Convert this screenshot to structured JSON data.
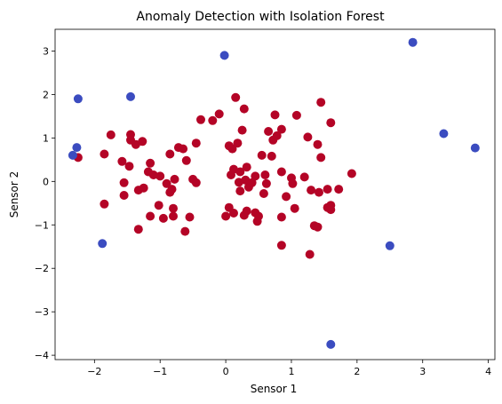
{
  "chart_data": {
    "type": "scatter",
    "title": "Anomaly Detection with Isolation Forest",
    "xlabel": "Sensor 1",
    "ylabel": "Sensor 2",
    "xlim": [
      -2.6,
      4.1
    ],
    "ylim": [
      -4.1,
      3.5
    ],
    "xticks": [
      -2,
      -1,
      0,
      1,
      2,
      3,
      4
    ],
    "yticks": [
      -4,
      -3,
      -2,
      -1,
      0,
      1,
      2,
      3
    ],
    "grid": false,
    "colors": {
      "normal": "#b40426",
      "anomaly": "#3b4cc0"
    },
    "series": [
      {
        "class": "normal",
        "points": [
          [
            -2.25,
            0.55
          ],
          [
            -1.85,
            -0.52
          ],
          [
            -1.85,
            0.63
          ],
          [
            -1.75,
            1.07
          ],
          [
            -1.55,
            -0.03
          ],
          [
            -1.55,
            -0.32
          ],
          [
            -1.58,
            0.46
          ],
          [
            -1.47,
            0.35
          ],
          [
            -1.45,
            0.95
          ],
          [
            -1.45,
            1.08
          ],
          [
            -1.37,
            0.85
          ],
          [
            -1.33,
            -1.1
          ],
          [
            -1.33,
            -0.2
          ],
          [
            -1.27,
            0.92
          ],
          [
            -1.25,
            -0.15
          ],
          [
            -1.18,
            0.22
          ],
          [
            -1.15,
            0.42
          ],
          [
            -1.15,
            -0.8
          ],
          [
            -1.1,
            0.15
          ],
          [
            -1.02,
            -0.55
          ],
          [
            -1.0,
            0.12
          ],
          [
            -0.95,
            -0.85
          ],
          [
            -0.9,
            -0.05
          ],
          [
            -0.85,
            0.63
          ],
          [
            -0.85,
            -0.25
          ],
          [
            -0.82,
            -0.18
          ],
          [
            -0.8,
            -0.62
          ],
          [
            -0.8,
            -0.8
          ],
          [
            -0.78,
            0.05
          ],
          [
            -0.72,
            0.78
          ],
          [
            -0.65,
            0.75
          ],
          [
            -0.62,
            -1.15
          ],
          [
            -0.6,
            0.48
          ],
          [
            -0.55,
            -0.82
          ],
          [
            -0.5,
            0.05
          ],
          [
            -0.45,
            0.88
          ],
          [
            -0.45,
            -0.03
          ],
          [
            -0.38,
            1.42
          ],
          [
            -0.2,
            1.4
          ],
          [
            -0.1,
            1.55
          ],
          [
            0.0,
            -0.8
          ],
          [
            0.05,
            0.82
          ],
          [
            0.05,
            -0.6
          ],
          [
            0.08,
            0.15
          ],
          [
            0.1,
            0.75
          ],
          [
            0.12,
            0.28
          ],
          [
            0.12,
            -0.73
          ],
          [
            0.15,
            1.93
          ],
          [
            0.18,
            0.88
          ],
          [
            0.2,
            -0.02
          ],
          [
            0.22,
            -0.22
          ],
          [
            0.22,
            0.22
          ],
          [
            0.25,
            1.18
          ],
          [
            0.28,
            -0.78
          ],
          [
            0.28,
            1.67
          ],
          [
            0.3,
            0.03
          ],
          [
            0.32,
            0.33
          ],
          [
            0.32,
            -0.68
          ],
          [
            0.35,
            -0.13
          ],
          [
            0.4,
            -0.03
          ],
          [
            0.45,
            0.12
          ],
          [
            0.45,
            -0.72
          ],
          [
            0.48,
            -0.92
          ],
          [
            0.5,
            -0.8
          ],
          [
            0.55,
            0.6
          ],
          [
            0.58,
            -0.28
          ],
          [
            0.6,
            0.15
          ],
          [
            0.62,
            -0.05
          ],
          [
            0.65,
            1.15
          ],
          [
            0.7,
            0.58
          ],
          [
            0.72,
            0.95
          ],
          [
            0.75,
            1.53
          ],
          [
            0.78,
            1.05
          ],
          [
            0.85,
            1.2
          ],
          [
            0.85,
            0.22
          ],
          [
            0.85,
            -0.82
          ],
          [
            0.85,
            -1.47
          ],
          [
            0.92,
            -0.35
          ],
          [
            1.0,
            0.08
          ],
          [
            1.02,
            -0.05
          ],
          [
            1.05,
            -0.62
          ],
          [
            1.08,
            1.52
          ],
          [
            1.2,
            0.1
          ],
          [
            1.25,
            1.02
          ],
          [
            1.28,
            -1.68
          ],
          [
            1.3,
            -0.2
          ],
          [
            1.35,
            -1.02
          ],
          [
            1.4,
            -1.05
          ],
          [
            1.4,
            0.85
          ],
          [
            1.42,
            -0.25
          ],
          [
            1.45,
            0.55
          ],
          [
            1.45,
            1.82
          ],
          [
            1.55,
            -0.18
          ],
          [
            1.55,
            -0.6
          ],
          [
            1.6,
            -0.55
          ],
          [
            1.6,
            -0.65
          ],
          [
            1.6,
            1.35
          ],
          [
            1.72,
            -0.18
          ],
          [
            1.92,
            0.18
          ]
        ]
      },
      {
        "class": "anomaly",
        "points": [
          [
            -2.25,
            1.9
          ],
          [
            -1.45,
            1.95
          ],
          [
            -0.02,
            2.9
          ],
          [
            2.85,
            3.2
          ],
          [
            3.32,
            1.1
          ],
          [
            3.8,
            0.77
          ],
          [
            -2.27,
            0.78
          ],
          [
            -2.33,
            0.6
          ],
          [
            -1.88,
            -1.43
          ],
          [
            2.5,
            -1.48
          ],
          [
            1.6,
            -3.75
          ]
        ]
      }
    ]
  }
}
